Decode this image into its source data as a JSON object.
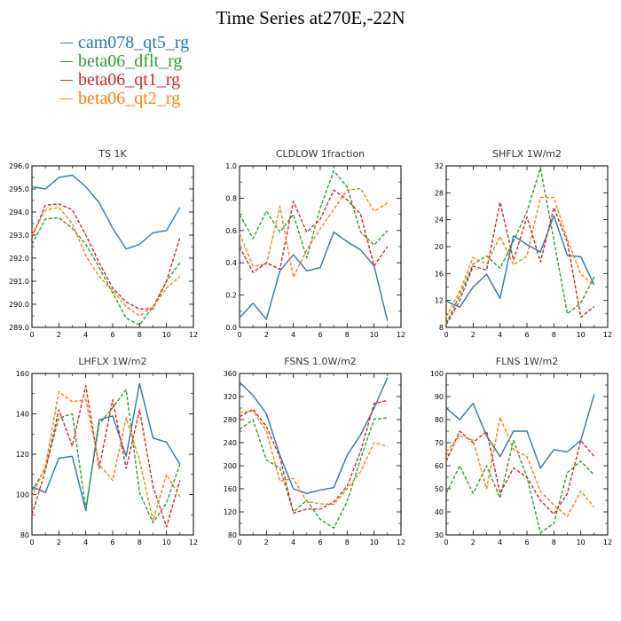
{
  "figure": {
    "title": "Time Series at270E,-22N"
  },
  "legend": {
    "items": [
      {
        "label": "cam078_qt5_rg",
        "color": "#2a78b4",
        "dash": "none"
      },
      {
        "label": "beta06_dflt_rg",
        "color": "#2ca02c",
        "dash": "dashed"
      },
      {
        "label": "beta06_qt1_rg",
        "color": "#d62728",
        "dash": "dashed"
      },
      {
        "label": "beta06_qt2_rg",
        "color": "#ff7f0e",
        "dash": "dashed"
      }
    ]
  },
  "chart_data": [
    {
      "type": "line",
      "title": "TS   1K",
      "x": [
        0,
        1,
        2,
        3,
        4,
        5,
        6,
        7,
        8,
        9,
        10,
        11
      ],
      "xlim": [
        0,
        12
      ],
      "xticks": [
        "0",
        "2",
        "4",
        "6",
        "8",
        "10",
        "12"
      ],
      "ylim": [
        289.0,
        296.0
      ],
      "yticks": [
        "289.0",
        "290.0",
        "291.0",
        "292.0",
        "293.0",
        "294.0",
        "295.0",
        "296.0"
      ],
      "series": [
        {
          "name": "cam078_qt5_rg",
          "values": [
            295.1,
            295.0,
            295.5,
            295.6,
            295.1,
            294.4,
            293.3,
            292.4,
            292.6,
            293.1,
            293.2,
            294.2
          ]
        },
        {
          "name": "beta06_dflt_rg",
          "values": [
            292.6,
            293.7,
            293.75,
            293.3,
            292.6,
            291.6,
            290.5,
            289.4,
            289.1,
            289.9,
            291.0,
            291.8
          ]
        },
        {
          "name": "beta06_qt1_rg",
          "values": [
            292.9,
            294.3,
            294.35,
            294.1,
            293.0,
            291.8,
            290.7,
            290.1,
            289.8,
            289.8,
            291.0,
            292.9
          ]
        },
        {
          "name": "beta06_qt2_rg",
          "values": [
            293.0,
            294.1,
            294.2,
            293.5,
            292.1,
            291.2,
            290.6,
            289.9,
            289.5,
            289.9,
            290.7,
            291.2
          ]
        }
      ]
    },
    {
      "type": "line",
      "title": "CLDLOW   1fraction",
      "x": [
        0,
        1,
        2,
        3,
        4,
        5,
        6,
        7,
        8,
        9,
        10,
        11
      ],
      "xlim": [
        0,
        12
      ],
      "xticks": [
        "0",
        "2",
        "4",
        "6",
        "8",
        "10",
        "12"
      ],
      "ylim": [
        0.0,
        1.0
      ],
      "yticks": [
        "0.0",
        "0.2",
        "0.4",
        "0.6",
        "0.8",
        "1.0"
      ],
      "series": [
        {
          "name": "cam078_qt5_rg",
          "values": [
            0.06,
            0.15,
            0.05,
            0.35,
            0.45,
            0.35,
            0.37,
            0.59,
            0.53,
            0.48,
            0.38,
            0.04
          ]
        },
        {
          "name": "beta06_dflt_rg",
          "values": [
            0.7,
            0.55,
            0.72,
            0.59,
            0.7,
            0.43,
            0.74,
            0.97,
            0.87,
            0.59,
            0.51,
            0.6
          ]
        },
        {
          "name": "beta06_qt1_rg",
          "values": [
            0.5,
            0.34,
            0.4,
            0.36,
            0.78,
            0.59,
            0.67,
            0.85,
            0.79,
            0.7,
            0.38,
            0.5
          ]
        },
        {
          "name": "beta06_qt2_rg",
          "values": [
            0.58,
            0.38,
            0.39,
            0.75,
            0.31,
            0.48,
            0.61,
            0.73,
            0.85,
            0.86,
            0.72,
            0.77
          ]
        }
      ]
    },
    {
      "type": "line",
      "title": "SHFLX   1W/m2",
      "x": [
        0,
        1,
        2,
        3,
        4,
        5,
        6,
        7,
        8,
        9,
        10,
        11
      ],
      "xlim": [
        0,
        12
      ],
      "xticks": [
        "0",
        "2",
        "4",
        "6",
        "8",
        "10",
        "12"
      ],
      "ylim": [
        8,
        32
      ],
      "yticks": [
        "8",
        "12",
        "16",
        "20",
        "24",
        "28",
        "32"
      ],
      "series": [
        {
          "name": "cam078_qt5_rg",
          "values": [
            11.9,
            11.0,
            14.0,
            15.9,
            12.3,
            21.6,
            20.3,
            19.2,
            24.6,
            18.7,
            18.5,
            14.3
          ]
        },
        {
          "name": "beta06_dflt_rg",
          "values": [
            8.6,
            12.8,
            17.4,
            18.6,
            16.8,
            20.8,
            25.2,
            31.7,
            21.0,
            10.0,
            11.6,
            15.5
          ]
        },
        {
          "name": "beta06_qt1_rg",
          "values": [
            8.4,
            12.0,
            17.1,
            16.5,
            26.6,
            18.0,
            24.4,
            17.7,
            25.8,
            20.7,
            9.5,
            11.1
          ]
        },
        {
          "name": "beta06_qt2_rg",
          "values": [
            9.6,
            13.4,
            18.4,
            17.4,
            21.5,
            17.3,
            18.6,
            27.3,
            27.3,
            21.1,
            15.9,
            14.3
          ]
        }
      ]
    },
    {
      "type": "line",
      "title": "LHFLX   1W/m2",
      "x": [
        0,
        1,
        2,
        3,
        4,
        5,
        6,
        7,
        8,
        9,
        10,
        11
      ],
      "xlim": [
        0,
        12
      ],
      "xticks": [
        "0",
        "2",
        "4",
        "6",
        "8",
        "10",
        "12"
      ],
      "ylim": [
        80,
        160
      ],
      "yticks": [
        "80",
        "100",
        "120",
        "140",
        "160"
      ],
      "series": [
        {
          "name": "cam078_qt5_rg",
          "values": [
            104,
            101,
            118,
            119,
            92,
            137,
            139,
            119,
            155,
            128,
            126,
            115
          ]
        },
        {
          "name": "beta06_dflt_rg",
          "values": [
            102,
            113,
            138,
            140,
            93,
            135,
            143,
            152,
            101,
            86,
            96,
            115
          ]
        },
        {
          "name": "beta06_qt1_rg",
          "values": [
            90,
            112,
            142,
            124,
            154,
            113,
            147,
            113,
            142,
            104,
            84,
            107
          ]
        },
        {
          "name": "beta06_qt2_rg",
          "values": [
            99,
            114,
            151,
            146,
            147,
            115,
            107,
            138,
            117,
            87,
            110,
            99
          ]
        }
      ]
    },
    {
      "type": "line",
      "title": "FSNS   1.0W/m2",
      "x": [
        0,
        1,
        2,
        3,
        4,
        5,
        6,
        7,
        8,
        9,
        10,
        11
      ],
      "xlim": [
        0,
        12
      ],
      "xticks": [
        "0",
        "2",
        "4",
        "6",
        "8",
        "10",
        "12"
      ],
      "ylim": [
        80,
        360
      ],
      "yticks": [
        "80",
        "120",
        "160",
        "200",
        "240",
        "280",
        "320",
        "360"
      ],
      "series": [
        {
          "name": "cam078_qt5_rg",
          "values": [
            345,
            322,
            290,
            218,
            160,
            152,
            158,
            162,
            218,
            254,
            300,
            353
          ]
        },
        {
          "name": "beta06_dflt_rg",
          "values": [
            263,
            280,
            210,
            196,
            120,
            140,
            107,
            92,
            138,
            212,
            281,
            283
          ]
        },
        {
          "name": "beta06_qt1_rg",
          "values": [
            285,
            298,
            268,
            215,
            118,
            125,
            125,
            137,
            165,
            225,
            308,
            313
          ]
        },
        {
          "name": "beta06_qt2_rg",
          "values": [
            292,
            295,
            260,
            173,
            178,
            138,
            134,
            133,
            160,
            190,
            240,
            234
          ]
        }
      ]
    },
    {
      "type": "line",
      "title": "FLNS   1W/m2",
      "x": [
        0,
        1,
        2,
        3,
        4,
        5,
        6,
        7,
        8,
        9,
        10,
        11
      ],
      "xlim": [
        0,
        12
      ],
      "xticks": [
        "0",
        "2",
        "4",
        "6",
        "8",
        "10",
        "12"
      ],
      "ylim": [
        30,
        100
      ],
      "yticks": [
        "30",
        "40",
        "50",
        "60",
        "70",
        "80",
        "90",
        "100"
      ],
      "series": [
        {
          "name": "cam078_qt5_rg",
          "values": [
            85,
            80,
            87,
            73,
            64,
            75,
            75,
            59,
            67,
            66,
            71,
            91
          ]
        },
        {
          "name": "beta06_dflt_rg",
          "values": [
            48,
            60,
            48,
            60,
            46,
            71,
            55,
            31,
            35,
            57,
            62,
            56
          ]
        },
        {
          "name": "beta06_qt1_rg",
          "values": [
            62,
            75,
            70,
            75,
            48,
            59,
            55,
            45,
            39,
            48,
            71,
            64
          ]
        },
        {
          "name": "beta06_qt2_rg",
          "values": [
            66,
            73,
            71,
            50,
            81,
            67,
            64,
            49,
            43,
            38,
            49,
            42
          ]
        }
      ]
    }
  ]
}
